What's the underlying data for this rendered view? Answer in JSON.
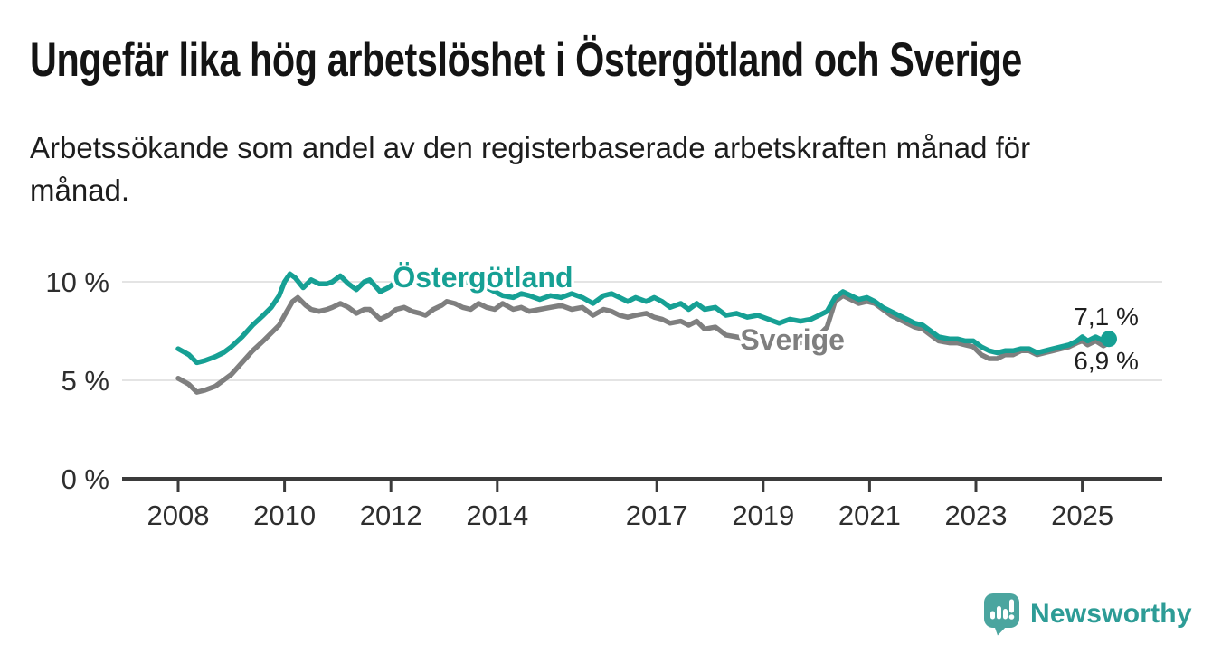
{
  "page": {
    "title": "Ungefär lika hög arbetslöshet i Östergötland och Sverige",
    "subtitle_lines": [
      "Arbetssökande som andel av den registerbaserade arbetskraften månad för",
      "månad."
    ]
  },
  "branding": {
    "logo_text": "Newsworthy",
    "logo_icon": "bar-chart-speech-bubble-icon",
    "icon_color": "#4ba59f",
    "text_color": "#2d9c96"
  },
  "chart_data": {
    "type": "line",
    "x_axis": {
      "ticks": [
        2008,
        2010,
        2012,
        2014,
        2017,
        2019,
        2021,
        2023,
        2025
      ],
      "data_start": 2008,
      "data_end": 2025.5,
      "grid": false
    },
    "y_axis": {
      "unit": "%",
      "ticks": [
        {
          "value": 0,
          "label": "0 %"
        },
        {
          "value": 5,
          "label": "5 %"
        },
        {
          "value": 10,
          "label": "10 %"
        }
      ],
      "range": [
        0,
        11.9
      ],
      "grid": true
    },
    "legend": "inline-labels",
    "colors": {
      "ostergotland": "#16a094",
      "sverige": "#7f7f7f",
      "gridline": "#e4e4e4",
      "axis": "#3b3b3b",
      "tick_label": "#2e2e2e",
      "annotation": "#1f1f1f"
    },
    "series": [
      {
        "id": "sverige",
        "name": "Sverige",
        "color": "#7f7f7f",
        "final_value": 6.9,
        "end_dot": false,
        "end_label": {
          "text": "6,9 %",
          "year": 2025.45,
          "value": 5.55
        },
        "inline_label": {
          "year": 2019.55,
          "value": 6.56
        },
        "points": [
          [
            2008.0,
            5.1
          ],
          [
            2008.2,
            4.8
          ],
          [
            2008.35,
            4.4
          ],
          [
            2008.5,
            4.5
          ],
          [
            2008.7,
            4.7
          ],
          [
            2008.85,
            5.0
          ],
          [
            2009.0,
            5.3
          ],
          [
            2009.2,
            5.9
          ],
          [
            2009.4,
            6.5
          ],
          [
            2009.6,
            7.0
          ],
          [
            2009.75,
            7.4
          ],
          [
            2009.9,
            7.8
          ],
          [
            2010.0,
            8.3
          ],
          [
            2010.15,
            9.0
          ],
          [
            2010.25,
            9.2
          ],
          [
            2010.4,
            8.8
          ],
          [
            2010.5,
            8.6
          ],
          [
            2010.65,
            8.5
          ],
          [
            2010.8,
            8.6
          ],
          [
            2010.9,
            8.7
          ],
          [
            2011.05,
            8.9
          ],
          [
            2011.2,
            8.7
          ],
          [
            2011.35,
            8.4
          ],
          [
            2011.5,
            8.6
          ],
          [
            2011.6,
            8.6
          ],
          [
            2011.8,
            8.1
          ],
          [
            2011.95,
            8.3
          ],
          [
            2012.1,
            8.6
          ],
          [
            2012.25,
            8.7
          ],
          [
            2012.4,
            8.5
          ],
          [
            2012.55,
            8.4
          ],
          [
            2012.65,
            8.3
          ],
          [
            2012.8,
            8.6
          ],
          [
            2012.95,
            8.8
          ],
          [
            2013.05,
            9.0
          ],
          [
            2013.2,
            8.9
          ],
          [
            2013.35,
            8.7
          ],
          [
            2013.5,
            8.6
          ],
          [
            2013.65,
            8.9
          ],
          [
            2013.8,
            8.7
          ],
          [
            2013.95,
            8.6
          ],
          [
            2014.1,
            8.9
          ],
          [
            2014.3,
            8.6
          ],
          [
            2014.45,
            8.7
          ],
          [
            2014.6,
            8.5
          ],
          [
            2014.8,
            8.6
          ],
          [
            2015.0,
            8.7
          ],
          [
            2015.2,
            8.8
          ],
          [
            2015.4,
            8.6
          ],
          [
            2015.6,
            8.7
          ],
          [
            2015.8,
            8.3
          ],
          [
            2016.0,
            8.6
          ],
          [
            2016.15,
            8.5
          ],
          [
            2016.3,
            8.3
          ],
          [
            2016.45,
            8.2
          ],
          [
            2016.6,
            8.3
          ],
          [
            2016.8,
            8.4
          ],
          [
            2016.95,
            8.2
          ],
          [
            2017.1,
            8.1
          ],
          [
            2017.25,
            7.9
          ],
          [
            2017.45,
            8.0
          ],
          [
            2017.6,
            7.8
          ],
          [
            2017.75,
            8.0
          ],
          [
            2017.9,
            7.6
          ],
          [
            2018.1,
            7.7
          ],
          [
            2018.3,
            7.3
          ],
          [
            2018.5,
            7.2
          ],
          [
            2018.7,
            7.1
          ],
          [
            2018.9,
            7.2
          ],
          [
            2019.1,
            7.1
          ],
          [
            2019.3,
            7.0
          ],
          [
            2019.5,
            7.1
          ],
          [
            2019.7,
            6.9
          ],
          [
            2019.9,
            7.1
          ],
          [
            2020.05,
            7.3
          ],
          [
            2020.2,
            7.7
          ],
          [
            2020.35,
            9.0
          ],
          [
            2020.5,
            9.3
          ],
          [
            2020.65,
            9.1
          ],
          [
            2020.8,
            8.9
          ],
          [
            2020.95,
            9.0
          ],
          [
            2021.1,
            8.9
          ],
          [
            2021.25,
            8.6
          ],
          [
            2021.4,
            8.3
          ],
          [
            2021.55,
            8.1
          ],
          [
            2021.7,
            7.9
          ],
          [
            2021.85,
            7.7
          ],
          [
            2022.0,
            7.6
          ],
          [
            2022.15,
            7.3
          ],
          [
            2022.3,
            7.0
          ],
          [
            2022.5,
            6.9
          ],
          [
            2022.65,
            6.9
          ],
          [
            2022.8,
            6.8
          ],
          [
            2022.95,
            6.7
          ],
          [
            2023.1,
            6.3
          ],
          [
            2023.25,
            6.1
          ],
          [
            2023.4,
            6.1
          ],
          [
            2023.55,
            6.3
          ],
          [
            2023.7,
            6.3
          ],
          [
            2023.85,
            6.5
          ],
          [
            2024.0,
            6.5
          ],
          [
            2024.15,
            6.3
          ],
          [
            2024.3,
            6.4
          ],
          [
            2024.45,
            6.5
          ],
          [
            2024.6,
            6.6
          ],
          [
            2024.75,
            6.7
          ],
          [
            2024.9,
            6.9
          ],
          [
            2025.0,
            7.0
          ],
          [
            2025.1,
            6.8
          ],
          [
            2025.25,
            7.0
          ],
          [
            2025.4,
            6.75
          ],
          [
            2025.5,
            6.9
          ]
        ]
      },
      {
        "id": "ostergotland",
        "name": "Östergötland",
        "color": "#16a094",
        "final_value": 7.1,
        "end_dot": true,
        "end_label": {
          "text": "7,1 %",
          "year": 2025.45,
          "value": 7.8
        },
        "inline_label": {
          "year": 2013.73,
          "value": 9.72
        },
        "points": [
          [
            2008.0,
            6.6
          ],
          [
            2008.2,
            6.3
          ],
          [
            2008.35,
            5.9
          ],
          [
            2008.5,
            6.0
          ],
          [
            2008.7,
            6.2
          ],
          [
            2008.85,
            6.4
          ],
          [
            2009.0,
            6.7
          ],
          [
            2009.2,
            7.2
          ],
          [
            2009.4,
            7.8
          ],
          [
            2009.6,
            8.3
          ],
          [
            2009.75,
            8.7
          ],
          [
            2009.9,
            9.3
          ],
          [
            2010.0,
            10.0
          ],
          [
            2010.1,
            10.4
          ],
          [
            2010.2,
            10.2
          ],
          [
            2010.35,
            9.7
          ],
          [
            2010.5,
            10.1
          ],
          [
            2010.65,
            9.9
          ],
          [
            2010.8,
            9.9
          ],
          [
            2010.9,
            10.0
          ],
          [
            2011.05,
            10.3
          ],
          [
            2011.2,
            9.9
          ],
          [
            2011.35,
            9.6
          ],
          [
            2011.5,
            10.0
          ],
          [
            2011.6,
            10.1
          ],
          [
            2011.8,
            9.5
          ],
          [
            2011.95,
            9.7
          ],
          [
            2012.1,
            10.0
          ],
          [
            2012.25,
            9.8
          ],
          [
            2012.4,
            9.9
          ],
          [
            2012.55,
            10.2
          ],
          [
            2012.65,
            10.4
          ],
          [
            2012.8,
            10.1
          ],
          [
            2012.95,
            10.2
          ],
          [
            2013.05,
            10.3
          ],
          [
            2013.2,
            10.0
          ],
          [
            2013.35,
            9.9
          ],
          [
            2013.5,
            10.0
          ],
          [
            2013.65,
            9.8
          ],
          [
            2013.8,
            9.7
          ],
          [
            2013.95,
            9.5
          ],
          [
            2014.1,
            9.3
          ],
          [
            2014.3,
            9.2
          ],
          [
            2014.45,
            9.4
          ],
          [
            2014.6,
            9.3
          ],
          [
            2014.8,
            9.1
          ],
          [
            2015.0,
            9.3
          ],
          [
            2015.2,
            9.2
          ],
          [
            2015.4,
            9.4
          ],
          [
            2015.6,
            9.2
          ],
          [
            2015.8,
            8.9
          ],
          [
            2016.0,
            9.3
          ],
          [
            2016.15,
            9.4
          ],
          [
            2016.3,
            9.2
          ],
          [
            2016.45,
            9.0
          ],
          [
            2016.6,
            9.2
          ],
          [
            2016.8,
            9.0
          ],
          [
            2016.95,
            9.2
          ],
          [
            2017.1,
            9.0
          ],
          [
            2017.25,
            8.7
          ],
          [
            2017.45,
            8.9
          ],
          [
            2017.6,
            8.6
          ],
          [
            2017.75,
            8.9
          ],
          [
            2017.9,
            8.6
          ],
          [
            2018.1,
            8.7
          ],
          [
            2018.3,
            8.3
          ],
          [
            2018.5,
            8.4
          ],
          [
            2018.7,
            8.2
          ],
          [
            2018.9,
            8.3
          ],
          [
            2019.1,
            8.1
          ],
          [
            2019.3,
            7.9
          ],
          [
            2019.5,
            8.1
          ],
          [
            2019.7,
            8.0
          ],
          [
            2019.9,
            8.1
          ],
          [
            2020.05,
            8.3
          ],
          [
            2020.2,
            8.5
          ],
          [
            2020.35,
            9.2
          ],
          [
            2020.5,
            9.5
          ],
          [
            2020.65,
            9.3
          ],
          [
            2020.8,
            9.1
          ],
          [
            2020.95,
            9.2
          ],
          [
            2021.1,
            9.0
          ],
          [
            2021.25,
            8.7
          ],
          [
            2021.4,
            8.5
          ],
          [
            2021.55,
            8.3
          ],
          [
            2021.7,
            8.1
          ],
          [
            2021.85,
            7.9
          ],
          [
            2022.0,
            7.8
          ],
          [
            2022.15,
            7.5
          ],
          [
            2022.3,
            7.2
          ],
          [
            2022.5,
            7.1
          ],
          [
            2022.65,
            7.1
          ],
          [
            2022.8,
            7.0
          ],
          [
            2022.95,
            7.0
          ],
          [
            2023.1,
            6.7
          ],
          [
            2023.25,
            6.5
          ],
          [
            2023.4,
            6.4
          ],
          [
            2023.55,
            6.5
          ],
          [
            2023.7,
            6.5
          ],
          [
            2023.85,
            6.6
          ],
          [
            2024.0,
            6.6
          ],
          [
            2024.15,
            6.4
          ],
          [
            2024.3,
            6.5
          ],
          [
            2024.45,
            6.6
          ],
          [
            2024.6,
            6.7
          ],
          [
            2024.75,
            6.8
          ],
          [
            2024.9,
            7.0
          ],
          [
            2025.0,
            7.2
          ],
          [
            2025.1,
            7.0
          ],
          [
            2025.25,
            7.2
          ],
          [
            2025.4,
            7.0
          ],
          [
            2025.5,
            7.1
          ]
        ]
      }
    ]
  }
}
